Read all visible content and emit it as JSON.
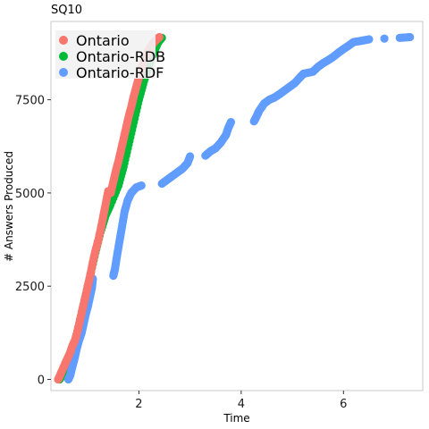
{
  "chart_data": {
    "type": "scatter",
    "title": "SQ10",
    "xlabel": "Time",
    "ylabel": "# Answers Produced",
    "xlim": [
      0.28,
      7.55
    ],
    "ylim": [
      -300,
      9600
    ],
    "xticks": [
      2,
      4,
      6
    ],
    "yticks": [
      0,
      2500,
      5000,
      7500
    ],
    "grid": false,
    "legend_position": "top-left",
    "series": [
      {
        "name": "Ontario-RDB",
        "color": "#00ba38",
        "points": [
          [
            0.45,
            0
          ],
          [
            0.5,
            120
          ],
          [
            0.58,
            300
          ],
          [
            0.66,
            600
          ],
          [
            0.75,
            1000
          ],
          [
            0.85,
            1600
          ],
          [
            0.95,
            2200
          ],
          [
            1.05,
            2800
          ],
          [
            1.15,
            3400
          ],
          [
            1.25,
            3950
          ],
          [
            1.35,
            4400
          ],
          [
            1.45,
            4700
          ],
          [
            1.6,
            5200
          ],
          [
            1.7,
            5700
          ],
          [
            1.8,
            6300
          ],
          [
            1.9,
            6900
          ],
          [
            2.0,
            7500
          ],
          [
            2.1,
            8000
          ],
          [
            2.2,
            8450
          ],
          [
            2.3,
            8800
          ],
          [
            2.38,
            9050
          ],
          [
            2.45,
            9160
          ]
        ]
      },
      {
        "name": "Ontario-RDF",
        "color": "#619cff",
        "points": [
          [
            0.62,
            0
          ],
          [
            0.66,
            120
          ],
          [
            0.7,
            350
          ],
          [
            0.74,
            550
          ],
          [
            0.78,
            800
          ],
          [
            0.83,
            1050
          ],
          [
            0.88,
            1250
          ],
          [
            0.92,
            1500
          ],
          [
            0.96,
            1750
          ],
          [
            1.0,
            1950
          ],
          [
            1.04,
            2200
          ],
          [
            1.08,
            2450
          ],
          [
            1.1,
            2700
          ],
          [
            1.5,
            2780
          ],
          [
            1.53,
            2950
          ],
          [
            1.57,
            3300
          ],
          [
            1.62,
            3700
          ],
          [
            1.67,
            4100
          ],
          [
            1.72,
            4500
          ],
          [
            1.78,
            4800
          ],
          [
            1.85,
            5000
          ],
          [
            1.95,
            5150
          ],
          [
            2.05,
            5200
          ],
          [
            2.45,
            5250
          ],
          [
            2.55,
            5350
          ],
          [
            2.65,
            5450
          ],
          [
            2.75,
            5550
          ],
          [
            2.85,
            5650
          ],
          [
            2.95,
            5800
          ],
          [
            3.0,
            5980
          ],
          [
            3.3,
            6000
          ],
          [
            3.4,
            6120
          ],
          [
            3.5,
            6200
          ],
          [
            3.6,
            6350
          ],
          [
            3.7,
            6550
          ],
          [
            3.75,
            6750
          ],
          [
            3.8,
            6900
          ],
          [
            4.25,
            6920
          ],
          [
            4.3,
            7050
          ],
          [
            4.35,
            7200
          ],
          [
            4.45,
            7400
          ],
          [
            4.55,
            7500
          ],
          [
            4.65,
            7560
          ],
          [
            4.75,
            7650
          ],
          [
            4.85,
            7750
          ],
          [
            4.95,
            7850
          ],
          [
            5.05,
            7950
          ],
          [
            5.15,
            8100
          ],
          [
            5.22,
            8200
          ],
          [
            5.4,
            8250
          ],
          [
            5.5,
            8380
          ],
          [
            5.6,
            8480
          ],
          [
            5.7,
            8560
          ],
          [
            5.8,
            8650
          ],
          [
            5.9,
            8760
          ],
          [
            6.0,
            8860
          ],
          [
            6.1,
            8950
          ],
          [
            6.2,
            9050
          ],
          [
            6.35,
            9080
          ],
          [
            6.5,
            9120
          ],
          [
            6.8,
            9140
          ],
          [
            7.1,
            9160
          ],
          [
            7.3,
            9180
          ]
        ]
      },
      {
        "name": "Ontario",
        "color": "#f8766d",
        "points": [
          [
            0.42,
            0
          ],
          [
            0.45,
            80
          ],
          [
            0.48,
            180
          ],
          [
            0.52,
            300
          ],
          [
            0.56,
            430
          ],
          [
            0.6,
            550
          ],
          [
            0.65,
            700
          ],
          [
            0.7,
            900
          ],
          [
            0.75,
            1050
          ],
          [
            0.8,
            1300
          ],
          [
            0.85,
            1600
          ],
          [
            0.9,
            1900
          ],
          [
            0.95,
            2200
          ],
          [
            1.0,
            2500
          ],
          [
            1.05,
            2800
          ],
          [
            1.1,
            3150
          ],
          [
            1.15,
            3450
          ],
          [
            1.2,
            3700
          ],
          [
            1.25,
            4000
          ],
          [
            1.3,
            4350
          ],
          [
            1.35,
            4700
          ],
          [
            1.4,
            5050
          ],
          [
            1.45,
            5000
          ],
          [
            1.5,
            5300
          ],
          [
            1.55,
            5600
          ],
          [
            1.6,
            5850
          ],
          [
            1.65,
            6150
          ],
          [
            1.7,
            6450
          ],
          [
            1.75,
            6750
          ],
          [
            1.8,
            7050
          ],
          [
            1.85,
            7300
          ],
          [
            1.9,
            7600
          ],
          [
            1.95,
            7850
          ],
          [
            2.0,
            8100
          ],
          [
            2.05,
            8350
          ],
          [
            2.1,
            8550
          ],
          [
            2.15,
            8700
          ],
          [
            2.2,
            8850
          ],
          [
            2.25,
            8950
          ],
          [
            2.3,
            9050
          ],
          [
            2.35,
            9120
          ],
          [
            2.4,
            9180
          ]
        ]
      }
    ]
  },
  "legend": {
    "items": [
      {
        "label": "Ontario",
        "color": "#f8766d"
      },
      {
        "label": "Ontario-RDB",
        "color": "#00ba38"
      },
      {
        "label": "Ontario-RDF",
        "color": "#619cff"
      }
    ]
  }
}
